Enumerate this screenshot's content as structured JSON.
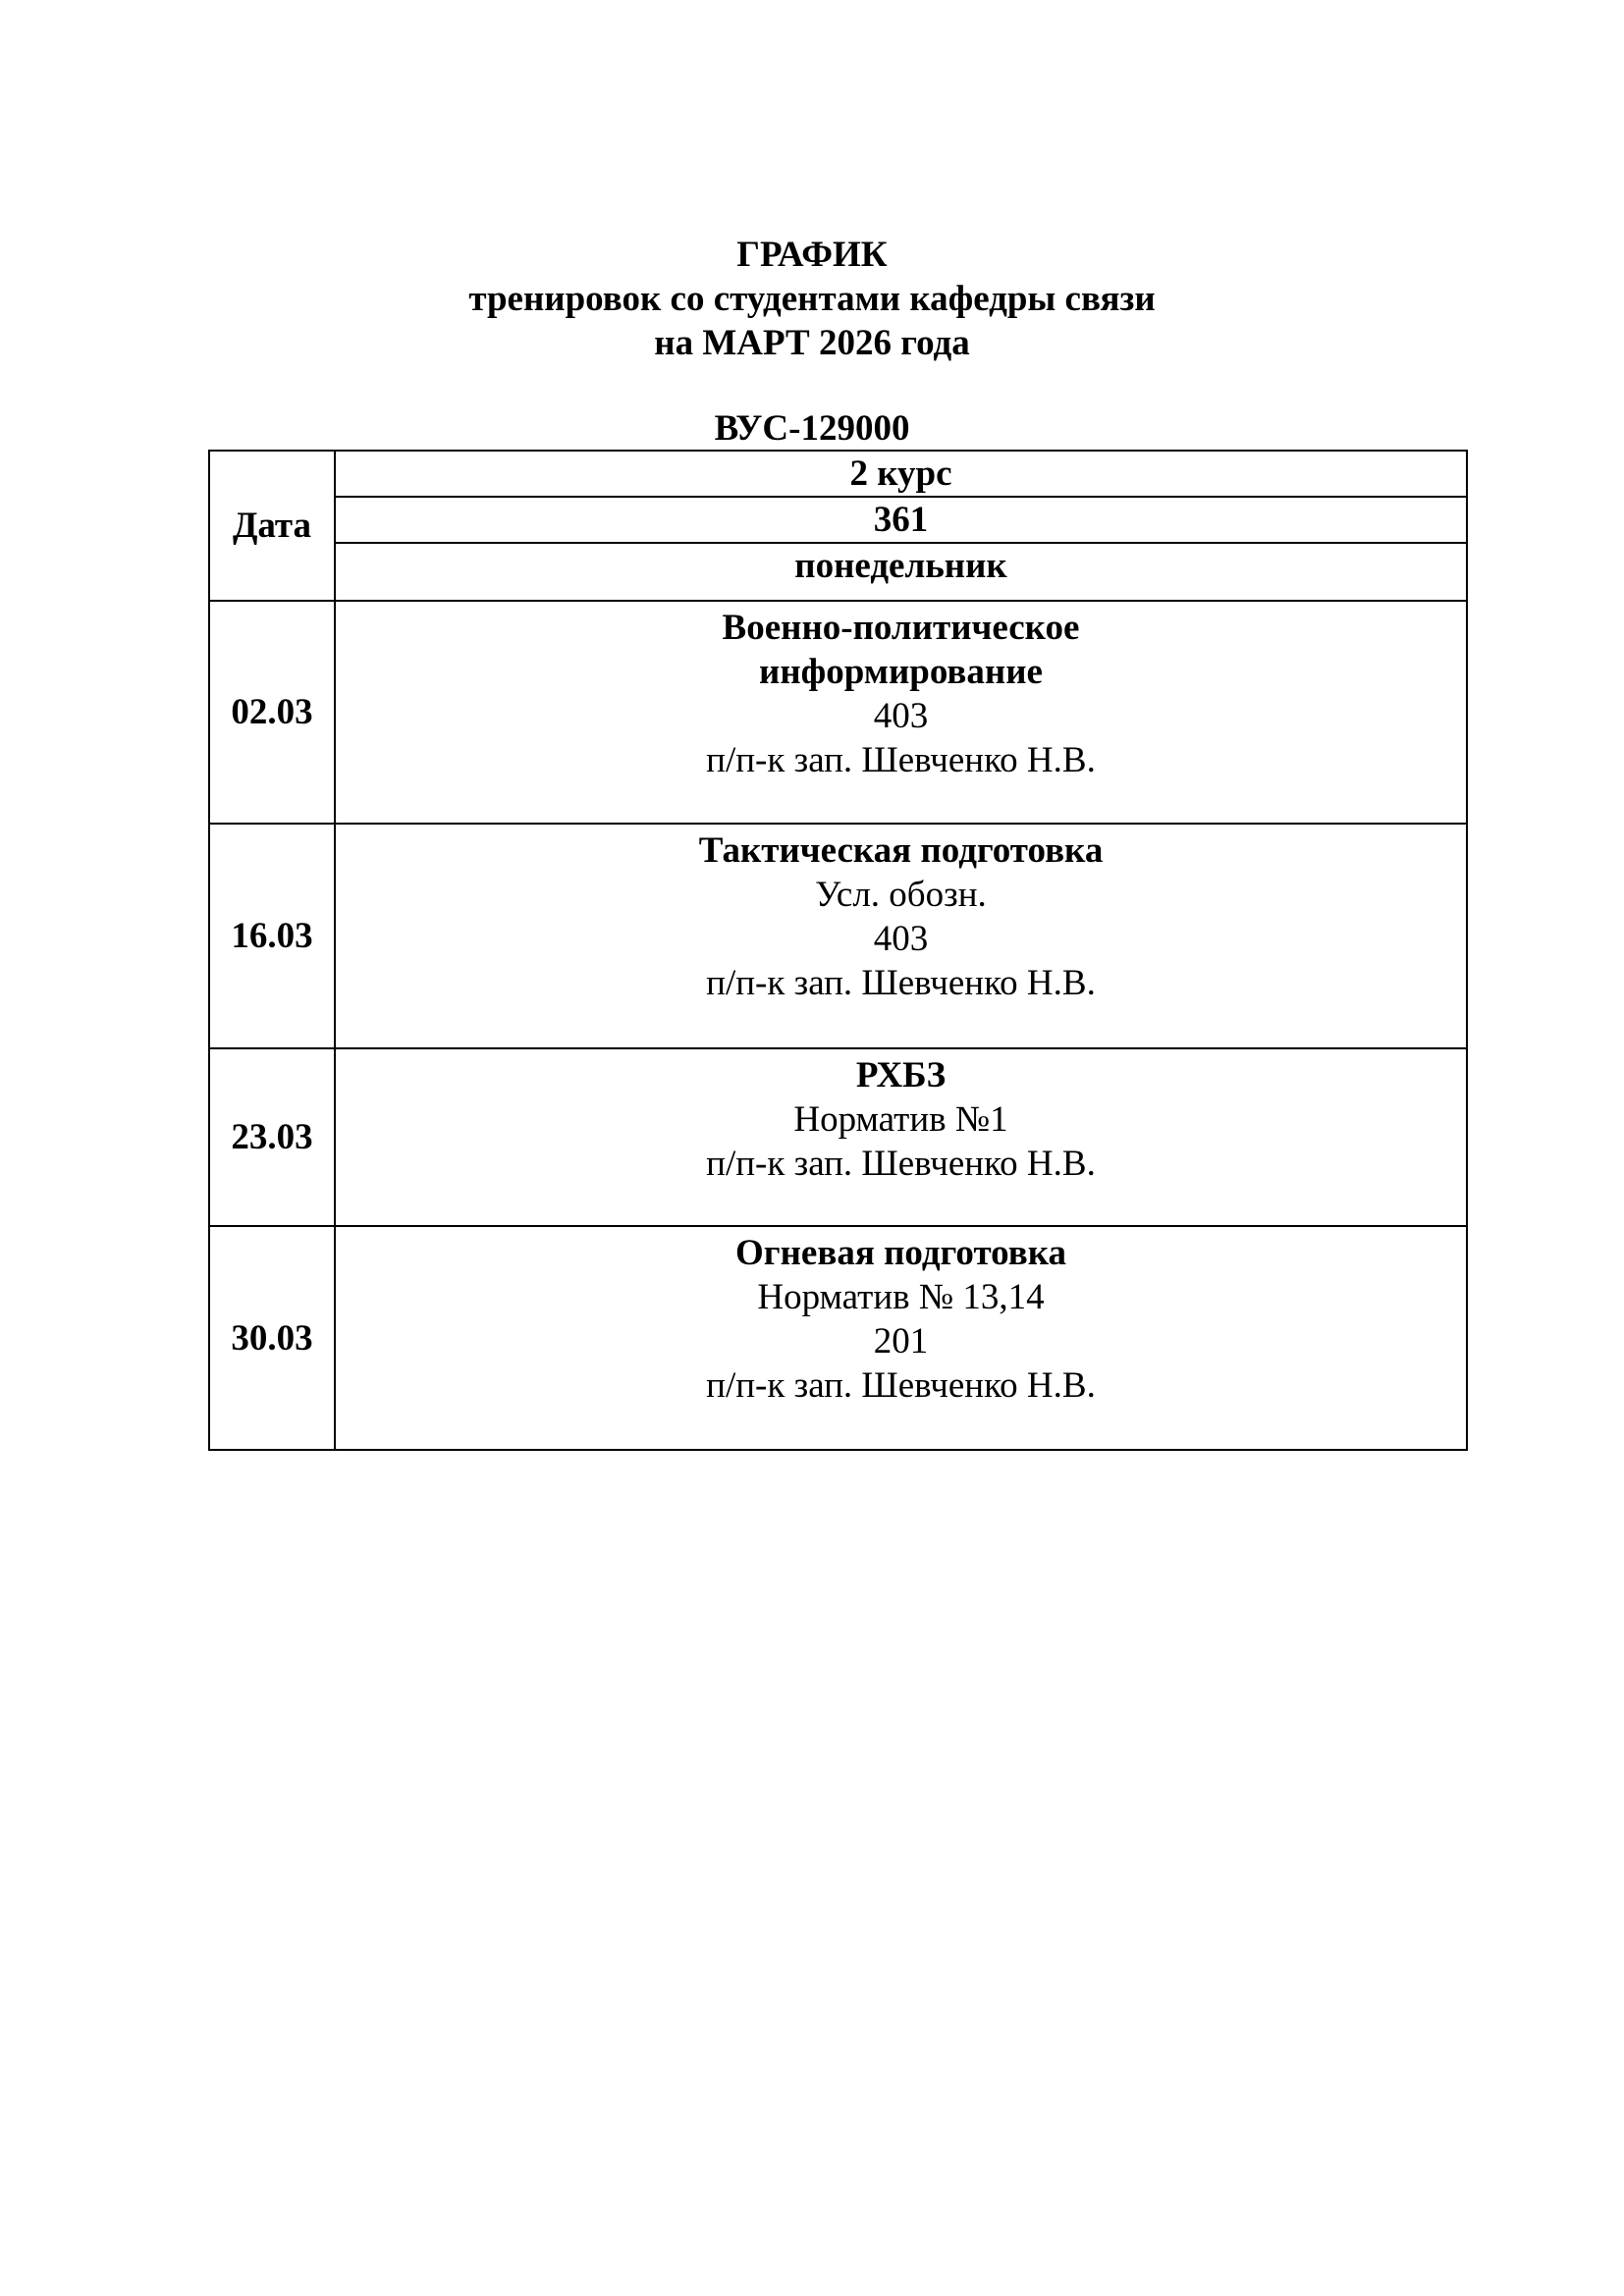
{
  "title": {
    "line1": "ГРАФИК",
    "line2": "тренировок со студентами кафедры связи",
    "line3": "на МАРТ 2026 года"
  },
  "vus": "ВУС-129000",
  "table": {
    "date_header": "Дата",
    "course": "2 курс",
    "group": "361",
    "weekday": "понедельник",
    "rows": [
      {
        "date": "02.03",
        "subject": [
          "Военно-политическое",
          "информирование"
        ],
        "details": [
          "403",
          "п/п-к зап. Шевченко Н.В."
        ]
      },
      {
        "date": "16.03",
        "subject": [
          "Тактическая подготовка"
        ],
        "details": [
          "Усл. обозн.",
          "403",
          "п/п-к зап. Шевченко Н.В."
        ]
      },
      {
        "date": "23.03",
        "subject": [
          "РХБЗ"
        ],
        "details": [
          "Норматив №1",
          "п/п-к зап. Шевченко Н.В."
        ]
      },
      {
        "date": "30.03",
        "subject": [
          "Огневая подготовка"
        ],
        "details": [
          "Норматив № 13,14",
          "201",
          "п/п-к зап. Шевченко Н.В."
        ]
      }
    ]
  }
}
